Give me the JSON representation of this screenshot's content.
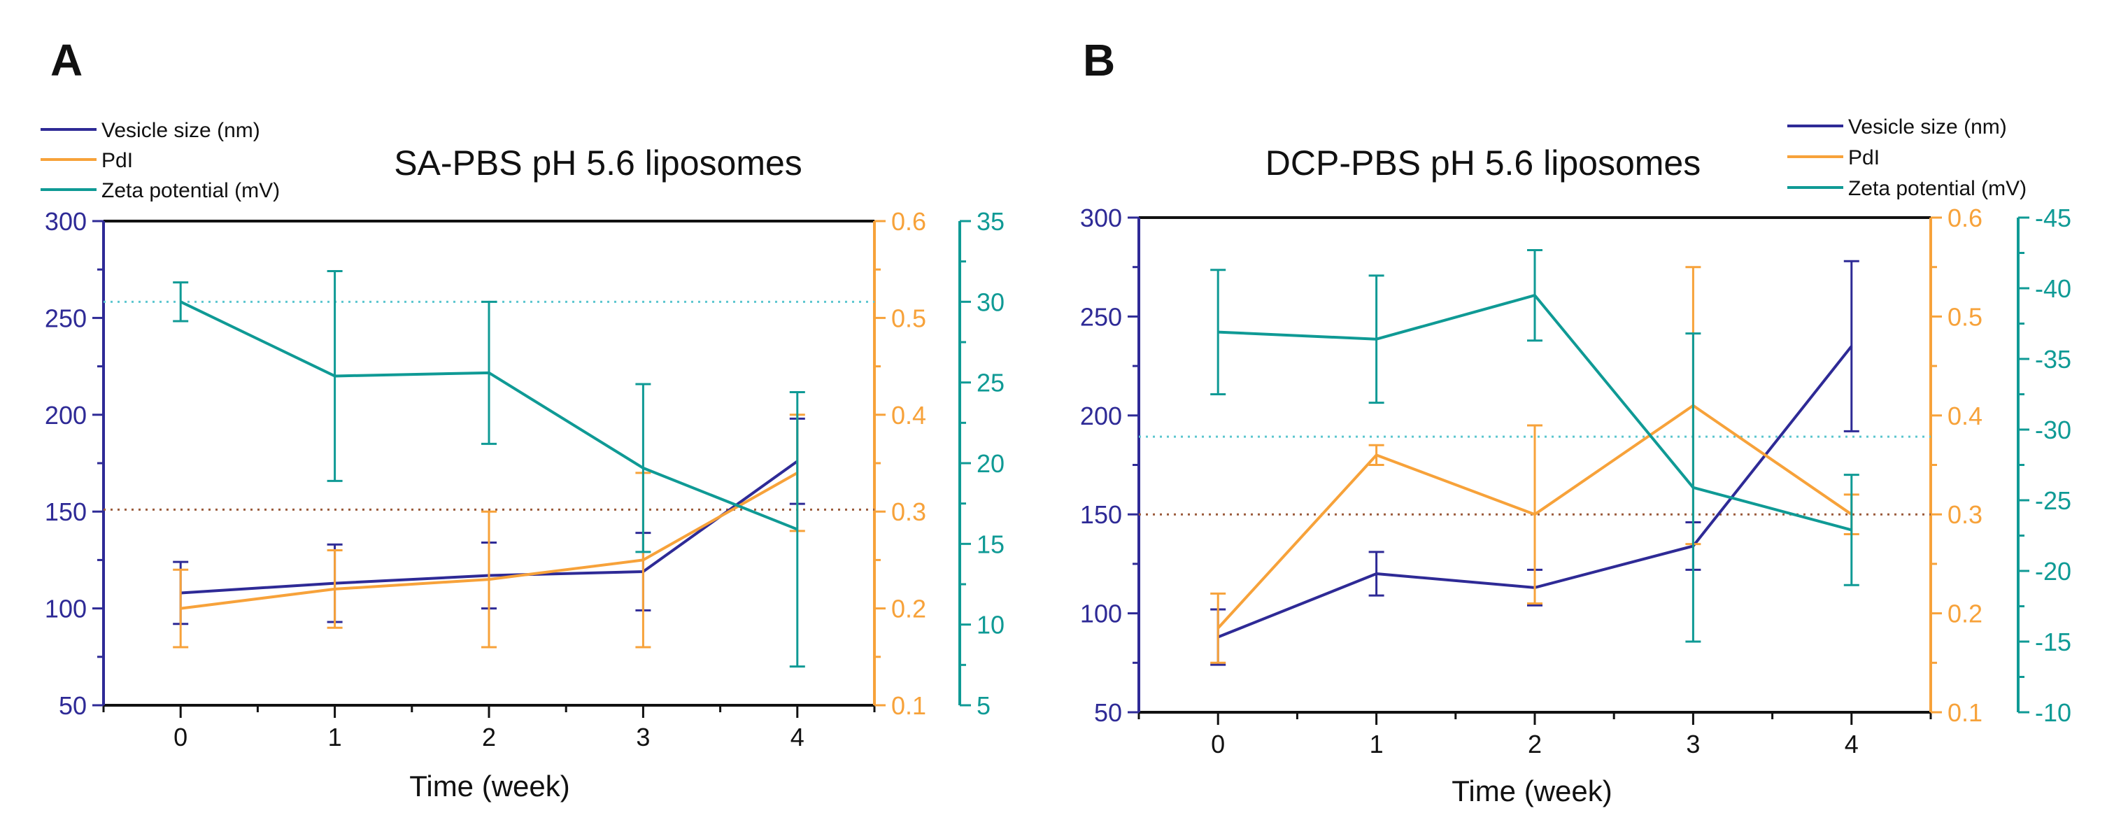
{
  "colors": {
    "size": "#2e2a96",
    "pdi": "#f7a23a",
    "zeta": "#0f9a95",
    "ref_zeta": "#5cc6cf",
    "ref_pdi": "#9a5a3a"
  },
  "chart_data": [
    {
      "type": "line",
      "panel": "A",
      "title": "SA-PBS pH 5.6 liposomes",
      "xlabel": "Time (week)",
      "x": [
        0,
        1,
        2,
        3,
        4
      ],
      "xticks": [
        "0",
        "1",
        "2",
        "3",
        "4"
      ],
      "xlim": [
        -0.5,
        4.5
      ],
      "axes": {
        "left": {
          "label": "Vesicle size (nm)",
          "lim": [
            50,
            300
          ],
          "ticks": [
            "50",
            "100",
            "150",
            "200",
            "250",
            "300"
          ],
          "tick_values": [
            50,
            100,
            150,
            200,
            250,
            300
          ]
        },
        "right1": {
          "label": "PdI",
          "lim": [
            0.1,
            0.6
          ],
          "ticks": [
            "0.1",
            "0.2",
            "0.3",
            "0.4",
            "0.5",
            "0.6"
          ],
          "tick_values": [
            0.1,
            0.2,
            0.3,
            0.4,
            0.5,
            0.6
          ]
        },
        "right2": {
          "label": "Zeta potential (mV)",
          "lim": [
            5,
            35
          ],
          "ticks": [
            "5",
            "10",
            "15",
            "20",
            "25",
            "30",
            "35"
          ],
          "tick_values": [
            5,
            10,
            15,
            20,
            25,
            30,
            35
          ]
        }
      },
      "legend_position": "top-left",
      "series": [
        {
          "name": "Vesicle size (nm)",
          "axis": "left",
          "color_key": "size",
          "values": [
            108,
            113,
            117,
            119,
            176
          ],
          "err": [
            16,
            20,
            17,
            20,
            22
          ]
        },
        {
          "name": "PdI",
          "axis": "right1",
          "color_key": "pdi",
          "values": [
            0.2,
            0.22,
            0.23,
            0.25,
            0.34
          ],
          "err": [
            0.04,
            0.04,
            0.07,
            0.09,
            0.06
          ]
        },
        {
          "name": "Zeta potential (mV)",
          "axis": "right2",
          "color_key": "zeta",
          "values": [
            30,
            25.4,
            25.6,
            19.7,
            15.9
          ],
          "err": [
            1.2,
            6.5,
            4.4,
            5.2,
            8.5
          ]
        }
      ],
      "reference_lines": [
        {
          "axis": "right2",
          "value": 30,
          "color_key": "ref_zeta"
        },
        {
          "axis": "left",
          "value": 151,
          "color_key": "ref_pdi"
        }
      ]
    },
    {
      "type": "line",
      "panel": "B",
      "title": "DCP-PBS pH 5.6 liposomes",
      "xlabel": "Time (week)",
      "x": [
        0,
        1,
        2,
        3,
        4
      ],
      "xticks": [
        "0",
        "1",
        "2",
        "3",
        "4"
      ],
      "xlim": [
        -0.5,
        4.5
      ],
      "axes": {
        "left": {
          "label": "Vesicle size (nm)",
          "lim": [
            50,
            300
          ],
          "ticks": [
            "50",
            "100",
            "150",
            "200",
            "250",
            "300"
          ],
          "tick_values": [
            50,
            100,
            150,
            200,
            250,
            300
          ]
        },
        "right1": {
          "label": "PdI",
          "lim": [
            0.1,
            0.6
          ],
          "ticks": [
            "0.1",
            "0.2",
            "0.3",
            "0.4",
            "0.5",
            "0.6"
          ],
          "tick_values": [
            0.1,
            0.2,
            0.3,
            0.4,
            0.5,
            0.6
          ]
        },
        "right2": {
          "label": "Zeta potential (mV)",
          "lim": [
            -10,
            -45
          ],
          "ticks": [
            "-10",
            "-15",
            "-20",
            "-25",
            "-30",
            "-35",
            "-40",
            "-45"
          ],
          "tick_values": [
            -10,
            -15,
            -20,
            -25,
            -30,
            -35,
            -40,
            -45
          ]
        }
      },
      "legend_position": "top-right",
      "series": [
        {
          "name": "Vesicle size (nm)",
          "axis": "left",
          "color_key": "size",
          "values": [
            88,
            120,
            113,
            134,
            235
          ],
          "err": [
            14,
            11,
            9,
            12,
            43
          ]
        },
        {
          "name": "PdI",
          "axis": "right1",
          "color_key": "pdi",
          "values": [
            0.185,
            0.36,
            0.3,
            0.41,
            0.3
          ],
          "err": [
            0.035,
            0.01,
            0.09,
            0.14,
            0.02
          ]
        },
        {
          "name": "Zeta potential (mV)",
          "axis": "right2",
          "color_key": "zeta",
          "values": [
            -36.9,
            -36.4,
            -39.5,
            -25.9,
            -22.9
          ],
          "err": [
            4.4,
            4.5,
            3.2,
            10.9,
            3.9
          ]
        }
      ],
      "reference_lines": [
        {
          "axis": "right2",
          "value": -29.5,
          "color_key": "ref_zeta"
        },
        {
          "axis": "left",
          "value": 150,
          "color_key": "ref_pdi"
        }
      ]
    }
  ]
}
